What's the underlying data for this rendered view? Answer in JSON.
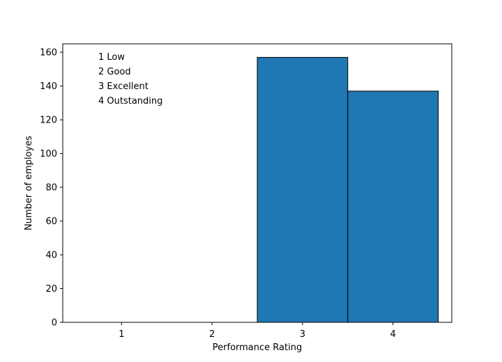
{
  "chart_data": {
    "type": "bar",
    "categories": [
      "1",
      "2",
      "3",
      "4"
    ],
    "values": [
      0,
      0,
      157,
      137
    ],
    "xlabel": "Performance Rating",
    "ylabel": "Number of employes",
    "ylim": [
      0,
      165
    ],
    "yticks": [
      "0",
      "20",
      "40",
      "60",
      "80",
      "100",
      "120",
      "140",
      "160"
    ],
    "ytick_values": [
      0,
      20,
      40,
      60,
      80,
      100,
      120,
      140,
      160
    ],
    "bar_color": "#1f77b4",
    "edge_color": "#000000",
    "annotations": [
      "1 Low",
      "2 Good",
      "3 Excellent",
      "4 Outstanding"
    ],
    "grid": false
  }
}
